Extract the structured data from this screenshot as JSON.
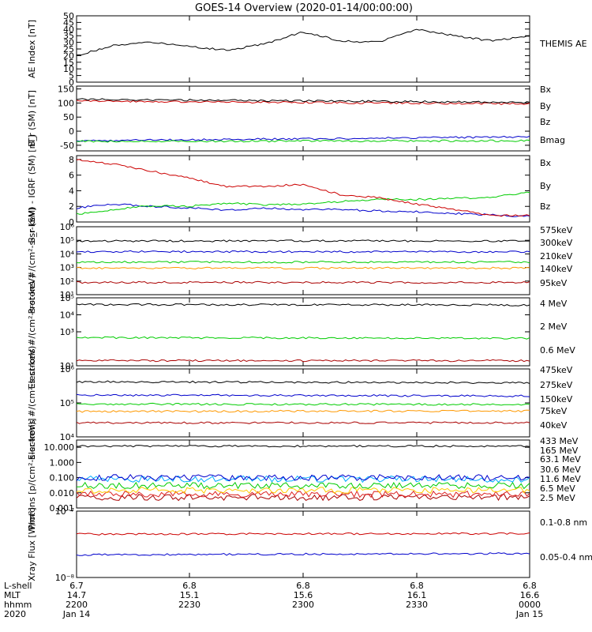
{
  "title": "GOES-14 Overview (2020-01-14/00:00:00)",
  "footer": {
    "row_labels": [
      "L-shell",
      "MLT",
      "hhmm",
      "2020"
    ],
    "ticks": [
      {
        "lshell": "6.7",
        "mlt": "14.7",
        "hhmm": "2200",
        "date": "Jan 14"
      },
      {
        "lshell": "6.8",
        "mlt": "15.1",
        "hhmm": "2230",
        "date": ""
      },
      {
        "lshell": "6.8",
        "mlt": "15.6",
        "hhmm": "2300",
        "date": ""
      },
      {
        "lshell": "6.8",
        "mlt": "16.1",
        "hhmm": "2330",
        "date": ""
      },
      {
        "lshell": "6.8",
        "mlt": "16.6",
        "hhmm": "0000",
        "date": "Jan 15"
      }
    ]
  },
  "chart_data": [
    {
      "type": "line",
      "ylabel": "AE Index [nT]",
      "yscale": "linear",
      "ylim": [
        0,
        50
      ],
      "yticks": [
        "0",
        "5",
        "10",
        "15",
        "20",
        "25",
        "30",
        "35",
        "40",
        "45",
        "50"
      ],
      "legend": [
        {
          "name": "THEMIS AE",
          "color": "#000000"
        }
      ],
      "x": [
        0,
        10,
        20,
        30,
        40,
        50,
        60,
        70,
        80,
        90,
        100,
        110,
        120
      ],
      "series": [
        {
          "name": "THEMIS AE",
          "color": "#000000",
          "values": [
            20,
            28,
            30,
            27,
            24,
            29,
            38,
            31,
            30,
            40,
            35,
            31,
            35
          ]
        }
      ]
    },
    {
      "type": "line",
      "ylabel": "B_r (SM) [nT]",
      "yscale": "linear",
      "ylim": [
        -70,
        160
      ],
      "yticks": [
        "-50",
        "0",
        "50",
        "100",
        "150"
      ],
      "legend": [
        {
          "name": "Bx",
          "color": "#0000cc"
        },
        {
          "name": "By",
          "color": "#00cc00"
        },
        {
          "name": "Bz",
          "color": "#cc0000"
        },
        {
          "name": "Bmag",
          "color": "#000000"
        }
      ],
      "x": [
        0,
        120
      ],
      "series": [
        {
          "name": "Bx",
          "color": "#0000cc",
          "values": [
            -34,
            -20
          ]
        },
        {
          "name": "By",
          "color": "#00cc00",
          "values": [
            -36,
            -34
          ]
        },
        {
          "name": "Bz",
          "color": "#cc0000",
          "values": [
            107,
            97
          ]
        },
        {
          "name": "Bmag",
          "color": "#000000",
          "values": [
            113,
            102
          ]
        }
      ]
    },
    {
      "type": "line",
      "ylabel": "B_r (SM) - IGRF (SM) [nT]",
      "yscale": "linear",
      "ylim": [
        0,
        8.5
      ],
      "yticks": [
        "0",
        "2",
        "4",
        "6",
        "8"
      ],
      "legend": [
        {
          "name": "Bx",
          "color": "#0000cc"
        },
        {
          "name": "By",
          "color": "#00cc00"
        },
        {
          "name": "Bz",
          "color": "#cc0000"
        }
      ],
      "x": [
        0,
        10,
        20,
        30,
        40,
        50,
        60,
        70,
        80,
        90,
        100,
        110,
        120
      ],
      "series": [
        {
          "name": "Bx",
          "color": "#0000cc",
          "values": [
            1.8,
            2.3,
            2.0,
            1.8,
            1.5,
            1.8,
            1.6,
            1.6,
            1.4,
            1.3,
            1.1,
            0.9,
            0.7
          ]
        },
        {
          "name": "By",
          "color": "#00cc00",
          "values": [
            1.0,
            1.6,
            2.1,
            2.0,
            2.4,
            2.2,
            2.3,
            2.6,
            2.9,
            2.9,
            3.0,
            3.2,
            3.8
          ]
        },
        {
          "name": "Bz",
          "color": "#cc0000",
          "values": [
            8.0,
            7.4,
            6.5,
            5.6,
            4.5,
            4.6,
            4.8,
            3.5,
            3.1,
            2.3,
            1.6,
            0.8,
            0.9
          ]
        }
      ]
    },
    {
      "type": "line",
      "ylabel": "Protons #/(cm²-s-sr-keV)",
      "yscale": "log",
      "ylim": [
        10,
        1000000
      ],
      "yticks": [
        "10¹",
        "10²",
        "10³",
        "10⁴",
        "10⁵",
        "10⁶"
      ],
      "legend": [
        {
          "name": "575keV",
          "color": "#aa0000"
        },
        {
          "name": "300keV",
          "color": "#ff9900"
        },
        {
          "name": "210keV",
          "color": "#00cc00"
        },
        {
          "name": "140keV",
          "color": "#0000cc"
        },
        {
          "name": "95keV",
          "color": "#000000"
        }
      ],
      "x": [
        0,
        120
      ],
      "series": [
        {
          "name": "575keV",
          "color": "#aa0000",
          "values": [
            80,
            80
          ]
        },
        {
          "name": "300keV",
          "color": "#ff9900",
          "values": [
            900,
            900
          ]
        },
        {
          "name": "210keV",
          "color": "#00cc00",
          "values": [
            2500,
            2500
          ]
        },
        {
          "name": "140keV",
          "color": "#0000cc",
          "values": [
            15000,
            14000
          ]
        },
        {
          "name": "95keV",
          "color": "#000000",
          "values": [
            90000,
            90000
          ]
        }
      ]
    },
    {
      "type": "line",
      "ylabel": "Electrons #/(cm²-s-sr-keV)",
      "yscale": "log",
      "ylim": [
        10,
        100000
      ],
      "yticks": [
        "10¹",
        "10³",
        "10⁴",
        "10⁵"
      ],
      "legend": [
        {
          "name": "4 MeV",
          "color": "#aa0000"
        },
        {
          "name": "2 MeV",
          "color": "#00cc00"
        },
        {
          "name": "0.6 MeV",
          "color": "#000000"
        }
      ],
      "x": [
        0,
        120
      ],
      "series": [
        {
          "name": "4 MeV",
          "color": "#aa0000",
          "values": [
            20,
            20
          ]
        },
        {
          "name": "2 MeV",
          "color": "#00cc00",
          "values": [
            450,
            420
          ]
        },
        {
          "name": "0.6 MeV",
          "color": "#000000",
          "values": [
            40000,
            38000
          ]
        }
      ]
    },
    {
      "type": "line",
      "ylabel": "Electrons #/(cm²-s-sr-keV)",
      "yscale": "log",
      "ylim": [
        10000,
        1000000
      ],
      "yticks": [
        "10⁴",
        "10⁵",
        "10⁶"
      ],
      "legend": [
        {
          "name": "475keV",
          "color": "#aa0000"
        },
        {
          "name": "275keV",
          "color": "#ff9900"
        },
        {
          "name": "150keV",
          "color": "#00cc00"
        },
        {
          "name": "75keV",
          "color": "#0000cc"
        },
        {
          "name": "40keV",
          "color": "#000000"
        }
      ],
      "x": [
        0,
        120
      ],
      "series": [
        {
          "name": "475keV",
          "color": "#aa0000",
          "values": [
            26000,
            26000
          ]
        },
        {
          "name": "275keV",
          "color": "#ff9900",
          "values": [
            56000,
            58000
          ]
        },
        {
          "name": "150keV",
          "color": "#00cc00",
          "values": [
            92000,
            90000
          ]
        },
        {
          "name": "75keV",
          "color": "#0000cc",
          "values": [
            170000,
            160000
          ]
        },
        {
          "name": "40keV",
          "color": "#000000",
          "values": [
            420000,
            390000
          ]
        }
      ]
    },
    {
      "type": "line",
      "ylabel": "Protons [p/(cm²-s-sr-keV)]",
      "yscale": "log",
      "ylim": [
        0.001,
        30
      ],
      "yticks": [
        "0.001",
        "0.010",
        "0.100",
        "1.000",
        "10.000"
      ],
      "legend": [
        {
          "name": "433 MeV",
          "color": "#aa0000"
        },
        {
          "name": "165 MeV",
          "color": "#dd2222"
        },
        {
          "name": "63.1 MeV",
          "color": "#ffcc00"
        },
        {
          "name": "30.6 MeV",
          "color": "#00cc00"
        },
        {
          "name": "11.6 MeV",
          "color": "#00aaff"
        },
        {
          "name": "6.5 MeV",
          "color": "#0000cc"
        },
        {
          "name": "2.5 MeV",
          "color": "#000000"
        }
      ],
      "x": [
        0,
        120
      ],
      "series": [
        {
          "name": "433 MeV",
          "color": "#aa0000",
          "values": [
            0.005,
            0.005
          ]
        },
        {
          "name": "165 MeV",
          "color": "#dd2222",
          "values": [
            0.008,
            0.008
          ]
        },
        {
          "name": "63.1 MeV",
          "color": "#ffcc00",
          "values": [
            0.015,
            0.015
          ]
        },
        {
          "name": "30.6 MeV",
          "color": "#00cc00",
          "values": [
            0.03,
            0.03
          ]
        },
        {
          "name": "11.6 MeV",
          "color": "#00aaff",
          "values": [
            0.08,
            0.08
          ]
        },
        {
          "name": "6.5 MeV",
          "color": "#0000cc",
          "values": [
            0.1,
            0.1
          ]
        },
        {
          "name": "2.5 MeV",
          "color": "#000000",
          "values": [
            12,
            12
          ]
        }
      ]
    },
    {
      "type": "line",
      "ylabel": "Xray Flux [W/m²]",
      "yscale": "log",
      "ylim": [
        1e-08,
        1e-07
      ],
      "yticks": [
        "10⁻⁸",
        "10⁻⁷"
      ],
      "legend": [
        {
          "name": "0.1-0.8 nm",
          "color": "#cc0000"
        },
        {
          "name": "0.05-0.4 nm",
          "color": "#0000cc"
        }
      ],
      "x": [
        0,
        120
      ],
      "series": [
        {
          "name": "0.1-0.8 nm",
          "color": "#cc0000",
          "values": [
            4.5e-08,
            4.6e-08
          ]
        },
        {
          "name": "0.05-0.4 nm",
          "color": "#0000cc",
          "values": [
            2.2e-08,
            2.3e-08
          ]
        }
      ]
    }
  ]
}
